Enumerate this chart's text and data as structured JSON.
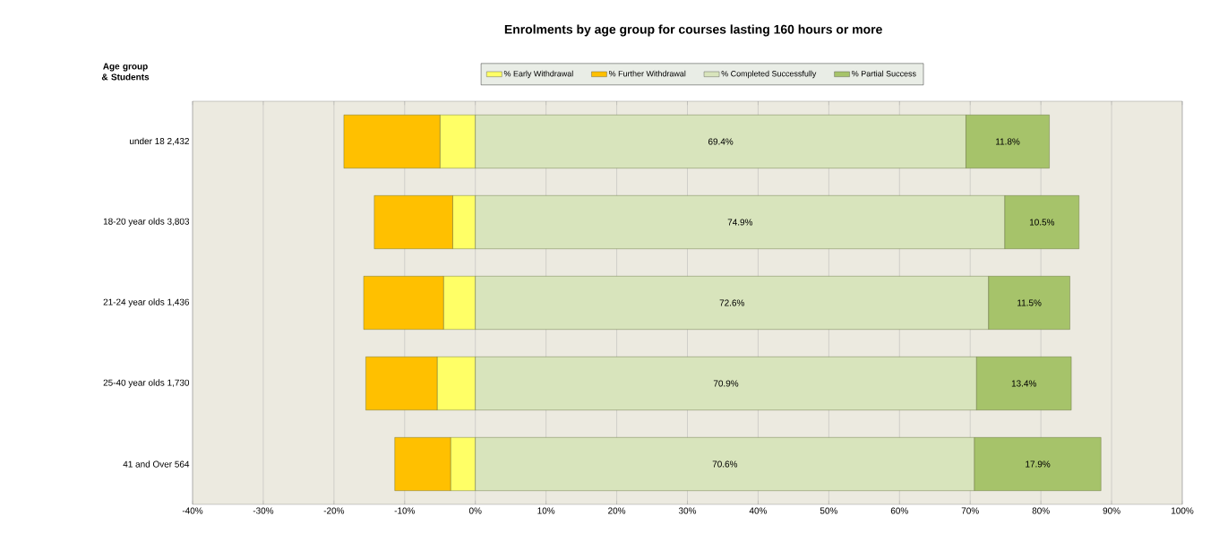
{
  "chart_data": {
    "type": "bar",
    "orientation": "horizontal",
    "stacked": true,
    "title": "Enrolments by age group for courses lasting 160 hours or more",
    "annotations": [
      "Age group & Students"
    ],
    "categories": [
      "under 18   2,432",
      "18-20 year olds   3,803",
      "21-24 year olds   1,436",
      "25-40 year olds   1,730",
      "41 and Over   564"
    ],
    "series": [
      {
        "name": "% Early Withdrawal",
        "color": "#ffff66",
        "values": [
          -5.0,
          -3.2,
          -4.5,
          -5.4,
          -3.5
        ]
      },
      {
        "name": "% Further Withdrawal",
        "color": "#ffc000",
        "values": [
          -13.6,
          -11.1,
          -11.3,
          -10.1,
          -7.9
        ]
      },
      {
        "name": "% Completed Successfully",
        "color": "#d8e4bc",
        "values": [
          69.4,
          74.9,
          72.6,
          70.9,
          70.6
        ],
        "value_labels": [
          "69.4%",
          "74.9%",
          "72.6%",
          "70.9%",
          "70.6%"
        ]
      },
      {
        "name": "% Partial Success",
        "color": "#a6c36a",
        "values": [
          11.8,
          10.5,
          11.5,
          13.4,
          17.9
        ],
        "value_labels": [
          "11.8%",
          "10.5%",
          "11.5%",
          "13.4%",
          "17.9%"
        ]
      }
    ],
    "xlim": [
      -40,
      100
    ],
    "xticks": [
      {
        "value": -40,
        "label": "-40%"
      },
      {
        "value": -30,
        "label": "-30%"
      },
      {
        "value": -20,
        "label": "-20%"
      },
      {
        "value": -10,
        "label": "-10%"
      },
      {
        "value": 0,
        "label": "0%"
      },
      {
        "value": 10,
        "label": "10%"
      },
      {
        "value": 20,
        "label": "20%"
      },
      {
        "value": 30,
        "label": "30%"
      },
      {
        "value": 40,
        "label": "40%"
      },
      {
        "value": 50,
        "label": "50%"
      },
      {
        "value": 60,
        "label": "60%"
      },
      {
        "value": 70,
        "label": "70%"
      },
      {
        "value": 80,
        "label": "80%"
      },
      {
        "value": 90,
        "label": "90%"
      },
      {
        "value": 100,
        "label": "100%"
      }
    ],
    "grid": "x",
    "legend": "top"
  }
}
